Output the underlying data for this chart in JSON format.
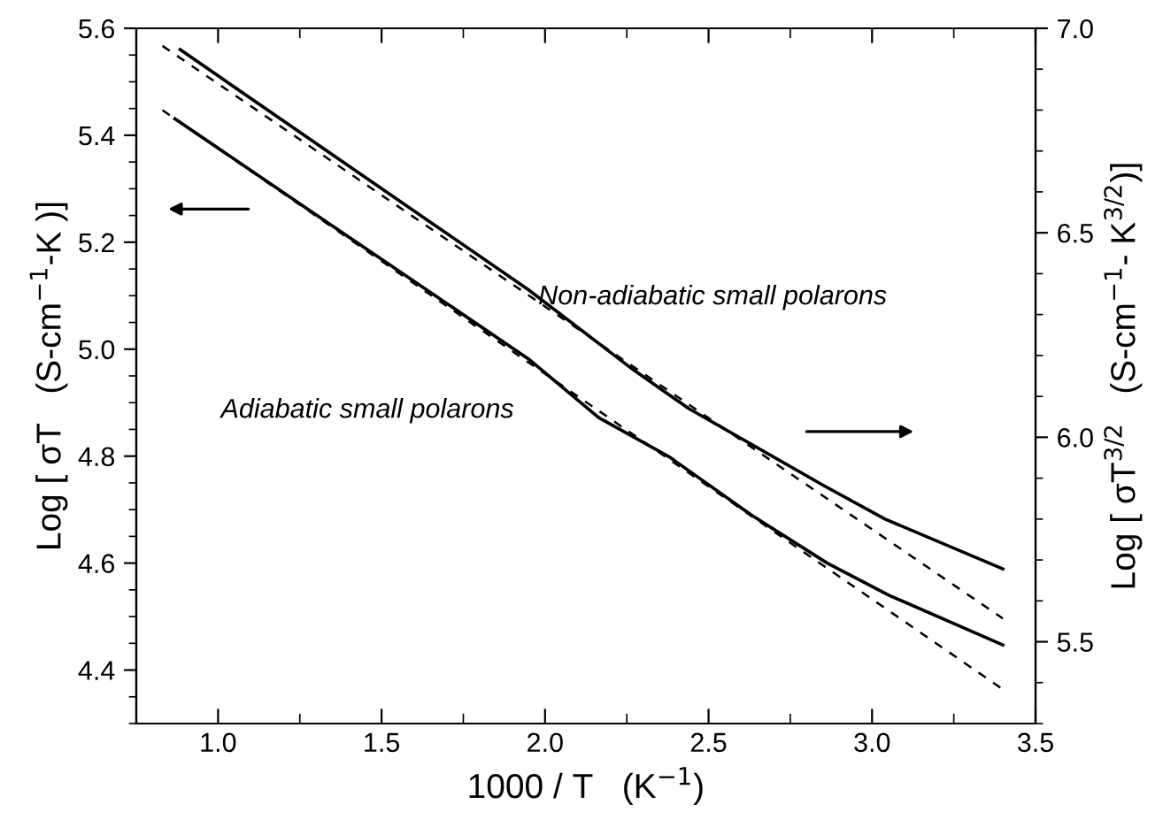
{
  "chart_data": {
    "type": "line",
    "xlabel": "1000 / T   (K$^{−1}$)",
    "ylabel": "Log [ σT   (S-cm$^{−1}$-K )]",
    "y2label": "Log [ σT$^{3/2}$   (S-cm$^{−1}$- K$^{3/2}$)]",
    "series": [
      {
        "color": "#000000",
        "line_style": "solid",
        "x": [
          0.868,
          1.411,
          1.949,
          2.164,
          2.379,
          2.631,
          2.863,
          3.051,
          3.4
        ],
        "values": [
          5.431,
          5.205,
          4.982,
          4.872,
          4.799,
          4.69,
          4.6,
          4.54,
          4.447
        ]
      },
      {
        "color": "#000000",
        "line_style": "solid",
        "axis": "y2",
        "x": [
          0.884,
          1.411,
          1.949,
          2.27,
          2.44,
          2.85,
          3.04,
          3.4
        ],
        "values": [
          6.948,
          6.657,
          6.361,
          6.165,
          6.07,
          5.883,
          5.8,
          5.678
        ]
      },
      {
        "color": "#000000",
        "line_style": "dashed",
        "x": [
          0.83,
          3.4
        ],
        "values": [
          5.447,
          4.364
        ]
      },
      {
        "color": "#000000",
        "line_style": "dashed",
        "axis": "y2",
        "x": [
          0.83,
          3.4
        ],
        "values": [
          6.957,
          5.557
        ]
      }
    ],
    "annotations": [
      "Non-adiabatic small polarons",
      "Adiabatic small polarons"
    ],
    "xlim": [
      0.75,
      3.5
    ],
    "xticks": [
      {
        "value": 1,
        "label": "1.0"
      },
      1.5,
      {
        "value": 2,
        "label": "2.0"
      },
      2.5,
      {
        "value": 3,
        "label": "3.0"
      },
      3.5
    ],
    "ylim": [
      4.3,
      5.6
    ],
    "yticks": [
      4.4,
      4.6,
      4.8,
      {
        "value": 5,
        "label": "5.0"
      },
      5.2,
      5.4,
      5.6
    ],
    "y2lim": [
      5.3,
      7.0
    ],
    "y2ticks": [
      5.5,
      {
        "value": 6,
        "label": "6.0"
      },
      6.5,
      {
        "value": 7,
        "label": "7.0"
      }
    ],
    "grid": false,
    "legend": false,
    "marker": "none"
  }
}
